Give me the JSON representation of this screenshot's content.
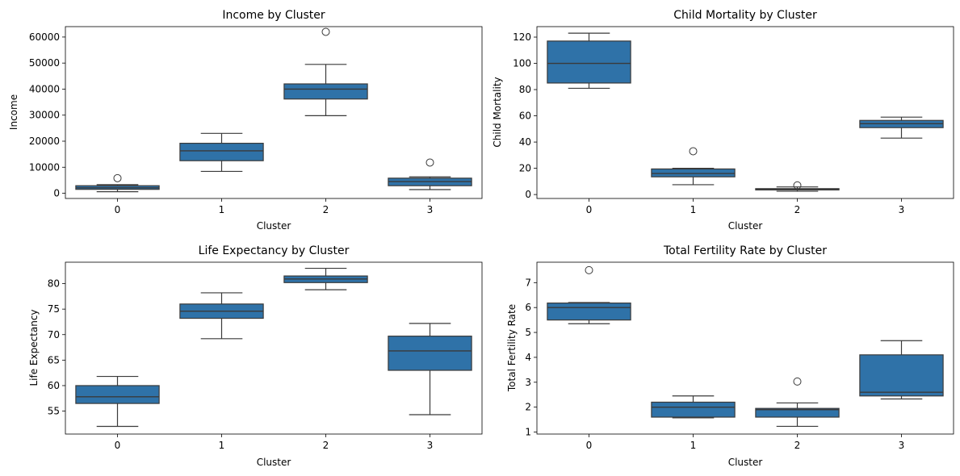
{
  "box_color": "#2f72a8",
  "line_color": "#3a3a3a",
  "chart_data": [
    {
      "type": "boxplot",
      "title": "Income by Cluster",
      "xlabel": "Cluster",
      "ylabel": "Income",
      "categories": [
        "0",
        "1",
        "2",
        "3"
      ],
      "ylim": [
        -2000,
        64000
      ],
      "yticks": [
        0,
        10000,
        20000,
        30000,
        40000,
        50000,
        60000
      ],
      "boxes": [
        {
          "whislo": 600,
          "q1": 1500,
          "med": 2100,
          "q3": 2900,
          "whishi": 3300,
          "fliers": [
            5800
          ]
        },
        {
          "whislo": 8400,
          "q1": 12500,
          "med": 16300,
          "q3": 19200,
          "whishi": 23000,
          "fliers": []
        },
        {
          "whislo": 29800,
          "q1": 36200,
          "med": 40000,
          "q3": 42000,
          "whishi": 49500,
          "fliers": [
            62000
          ]
        },
        {
          "whislo": 1400,
          "q1": 2900,
          "med": 4500,
          "q3": 5800,
          "whishi": 6300,
          "fliers": [
            11800
          ]
        }
      ]
    },
    {
      "type": "boxplot",
      "title": "Child Mortality by Cluster",
      "xlabel": "Cluster",
      "ylabel": "Child Mortality",
      "categories": [
        "0",
        "1",
        "2",
        "3"
      ],
      "ylim": [
        -3,
        128
      ],
      "yticks": [
        0,
        20,
        40,
        60,
        80,
        100,
        120
      ],
      "boxes": [
        {
          "whislo": 81,
          "q1": 85,
          "med": 100,
          "q3": 117,
          "whishi": 123,
          "fliers": []
        },
        {
          "whislo": 7.5,
          "q1": 13.5,
          "med": 16,
          "q3": 19.5,
          "whishi": 20,
          "fliers": [
            33
          ]
        },
        {
          "whislo": 2.5,
          "q1": 3.5,
          "med": 4,
          "q3": 4.5,
          "whishi": 5.8,
          "fliers": [
            7
          ]
        },
        {
          "whislo": 43,
          "q1": 51,
          "med": 54,
          "q3": 56.5,
          "whishi": 59,
          "fliers": []
        }
      ]
    },
    {
      "type": "boxplot",
      "title": "Life Expectancy by Cluster",
      "xlabel": "Cluster",
      "ylabel": "Life Expectancy",
      "categories": [
        "0",
        "1",
        "2",
        "3"
      ],
      "ylim": [
        50.5,
        84.2
      ],
      "yticks": [
        55,
        60,
        65,
        70,
        75,
        80
      ],
      "boxes": [
        {
          "whislo": 52,
          "q1": 56.5,
          "med": 57.8,
          "q3": 60,
          "whishi": 61.8,
          "fliers": []
        },
        {
          "whislo": 69.2,
          "q1": 73.2,
          "med": 74.6,
          "q3": 76,
          "whishi": 78.2,
          "fliers": []
        },
        {
          "whislo": 78.8,
          "q1": 80.2,
          "med": 80.9,
          "q3": 81.5,
          "whishi": 83,
          "fliers": []
        },
        {
          "whislo": 54.3,
          "q1": 63,
          "med": 66.8,
          "q3": 69.7,
          "whishi": 72.2,
          "fliers": []
        }
      ]
    },
    {
      "type": "boxplot",
      "title": "Total Fertility Rate by Cluster",
      "xlabel": "Cluster",
      "ylabel": "Total Fertility Rate",
      "categories": [
        "0",
        "1",
        "2",
        "3"
      ],
      "ylim": [
        0.92,
        7.82
      ],
      "yticks": [
        1,
        2,
        3,
        4,
        5,
        6,
        7
      ],
      "boxes": [
        {
          "whislo": 5.35,
          "q1": 5.5,
          "med": 6,
          "q3": 6.18,
          "whishi": 6.2,
          "fliers": [
            7.5
          ]
        },
        {
          "whislo": 1.57,
          "q1": 1.6,
          "med": 2.0,
          "q3": 2.2,
          "whishi": 2.45,
          "fliers": []
        },
        {
          "whislo": 1.23,
          "q1": 1.6,
          "med": 1.9,
          "q3": 1.95,
          "whishi": 2.17,
          "fliers": [
            3.03
          ]
        },
        {
          "whislo": 2.33,
          "q1": 2.45,
          "med": 2.6,
          "q3": 4.1,
          "whishi": 4.67,
          "fliers": []
        }
      ]
    }
  ]
}
